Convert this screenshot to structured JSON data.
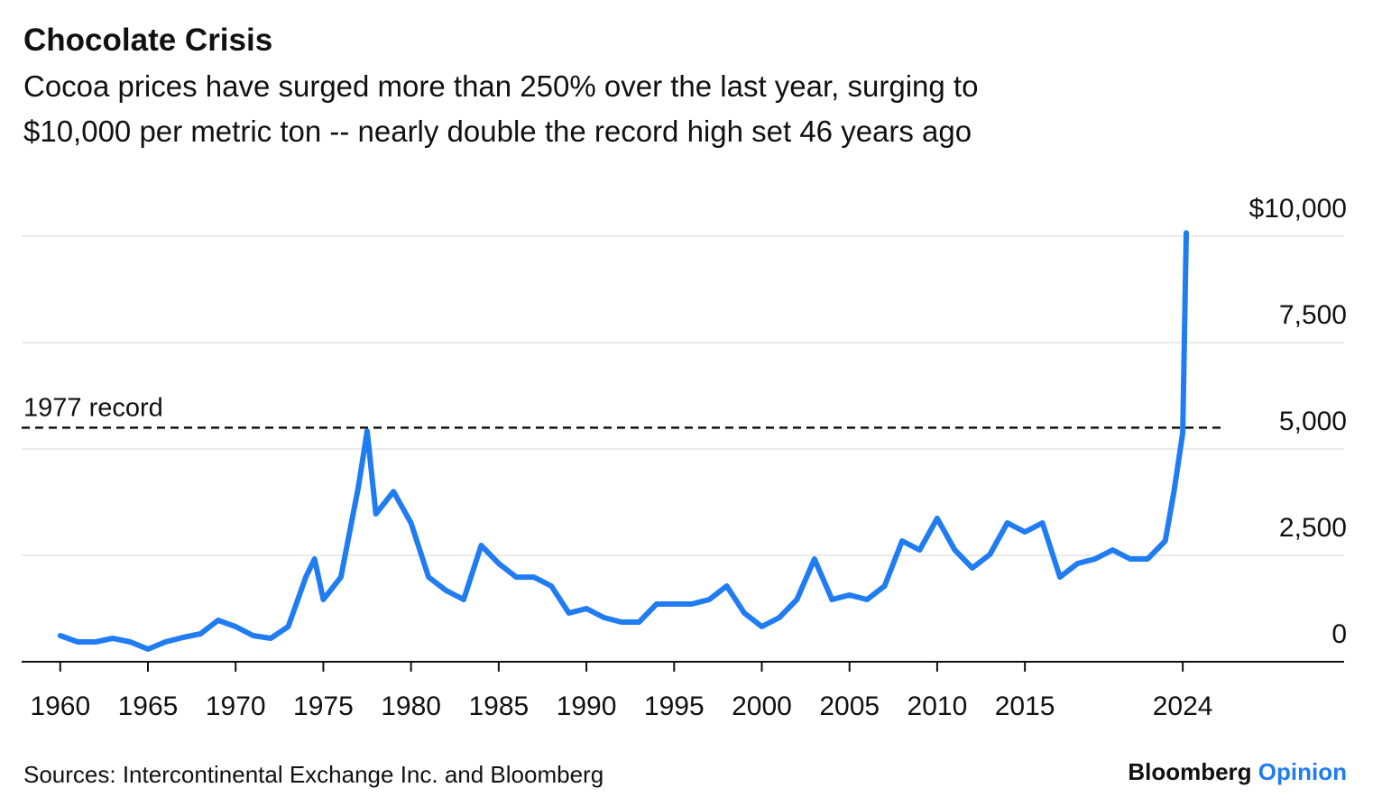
{
  "chart_data": {
    "type": "line",
    "title": "Chocolate Crisis",
    "subtitle_lines": [
      "Cocoa prices have surged more than 250% over the last year, surging to",
      "$10,000 per metric ton -- nearly double the record high set 46 years ago"
    ],
    "source": "Sources: Intercontinental Exchange Inc. and Bloomberg",
    "brand": {
      "name": "Bloomberg",
      "section": "Opinion"
    },
    "color": "#1f7cf2",
    "x": [
      1960,
      1961,
      1962,
      1963,
      1964,
      1965,
      1966,
      1967,
      1968,
      1969,
      1970,
      1971,
      1972,
      1973,
      1974,
      1974.5,
      1975,
      1976,
      1977,
      1977.5,
      1978,
      1979,
      1980,
      1981,
      1982,
      1983,
      1984,
      1985,
      1986,
      1987,
      1988,
      1989,
      1990,
      1991,
      1992,
      1993,
      1994,
      1995,
      1996,
      1997,
      1998,
      1999,
      2000,
      2001,
      2002,
      2003,
      2004,
      2005,
      2006,
      2007,
      2008,
      2009,
      2010,
      2011,
      2012,
      2013,
      2014,
      2015,
      2016,
      2017,
      2018,
      2019,
      2020,
      2021,
      2022,
      2023,
      2023.5,
      2024,
      2024.2
    ],
    "values": [
      615,
      466,
      466,
      550,
      466,
      297,
      466,
      572,
      657,
      975,
      826,
      615,
      550,
      826,
      1990,
      2416,
      1462,
      1990,
      4110,
      5420,
      3475,
      4000,
      3263,
      1990,
      1674,
      1462,
      2733,
      2310,
      1990,
      1990,
      1780,
      1144,
      1250,
      1038,
      932,
      932,
      1356,
      1356,
      1356,
      1462,
      1780,
      1144,
      826,
      1038,
      1462,
      2416,
      1462,
      1568,
      1462,
      1780,
      2840,
      2628,
      3370,
      2628,
      2204,
      2522,
      3263,
      3051,
      3263,
      1990,
      2310,
      2416,
      2628,
      2416,
      2416,
      2840,
      4000,
      5380,
      10080
    ],
    "reference_line": {
      "label": "1977 record",
      "value": 5500
    },
    "xlim": [
      1957.8,
      2033.2
    ],
    "xticks": [
      1960,
      1965,
      1970,
      1975,
      1980,
      1985,
      1990,
      1995,
      2000,
      2005,
      2010,
      2015,
      2024
    ],
    "ylim": [
      0,
      10000
    ],
    "yticks": [
      0,
      {
        "value": 2500,
        "label": "2,500"
      },
      {
        "value": 5000,
        "label": "5,000"
      },
      {
        "value": 7500,
        "label": "7,500"
      },
      {
        "value": 10000,
        "label": "$10,000"
      }
    ],
    "grid": true
  }
}
